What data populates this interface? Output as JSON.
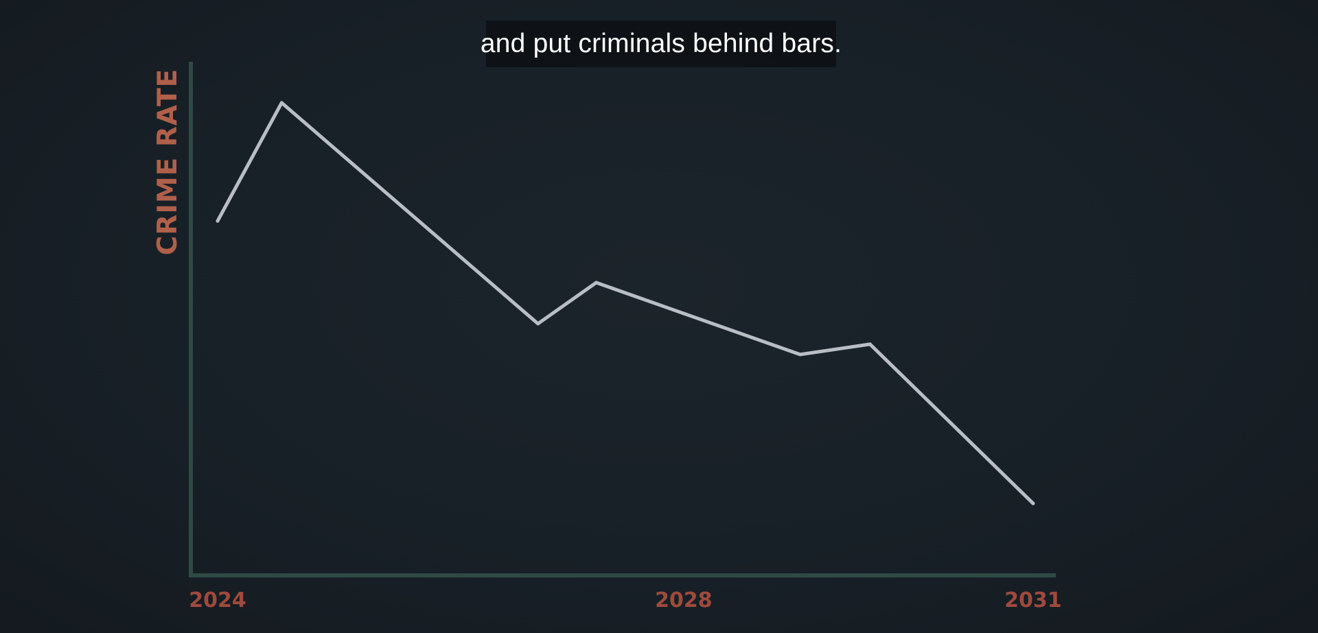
{
  "caption": "and put criminals behind bars.",
  "colors": {
    "background": "#182027",
    "axis": "#2f4a44",
    "line": "#b9bec4",
    "axis_label": "#b0604a",
    "tick_label": "#9e4a3c"
  },
  "chart_data": {
    "type": "line",
    "title": "",
    "ylabel": "CRIME RATE",
    "xlabel": "",
    "xlim": [
      2024,
      2031
    ],
    "ylim": [
      0,
      100
    ],
    "grid": false,
    "y_ticks_shown": false,
    "x_ticks": [
      2024,
      2028,
      2031
    ],
    "series": [
      {
        "x": [
          2024.0,
          2024.55,
          2026.75,
          2027.25,
          2029.0,
          2029.6,
          2031.0
        ],
        "y": [
          69,
          92,
          49,
          57,
          43,
          45,
          14
        ]
      }
    ]
  }
}
